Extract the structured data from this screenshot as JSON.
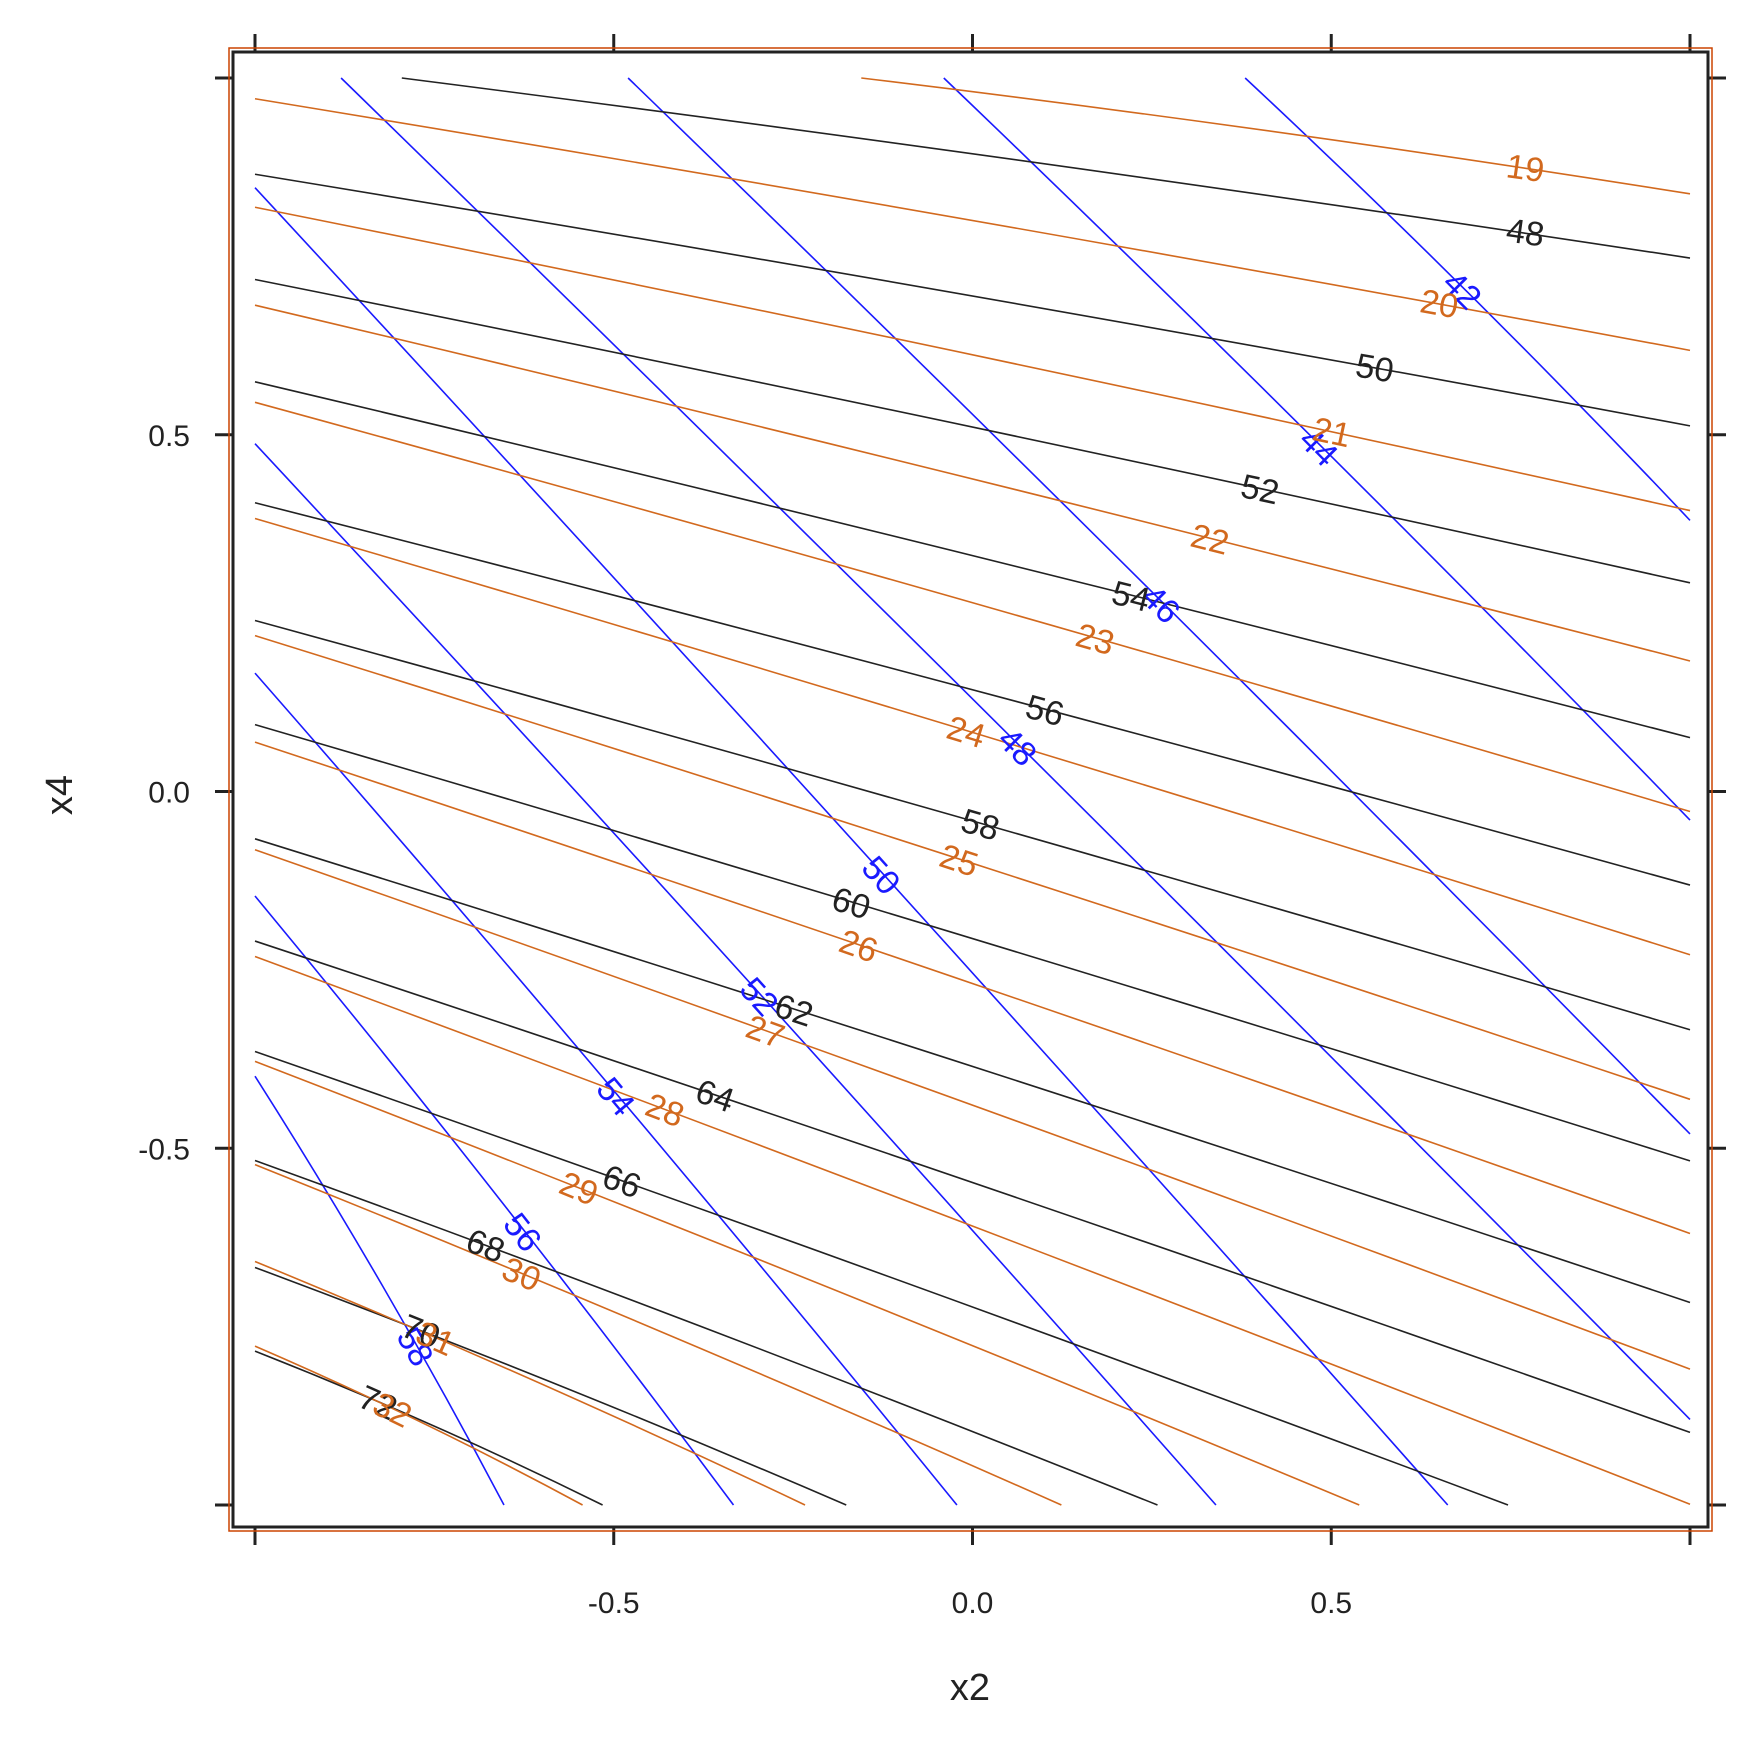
{
  "chart_data": {
    "type": "contour",
    "xlabel": "x2",
    "ylabel": "x4",
    "xlim": [
      -1,
      1
    ],
    "ylim": [
      -1,
      1
    ],
    "x_ticks": [
      -0.5,
      0.0,
      0.5
    ],
    "y_ticks": [
      -0.5,
      0.0,
      0.5
    ],
    "x_tick_labels": [
      "-0.5",
      "0.0",
      "0.5"
    ],
    "y_tick_labels": [
      "-0.5",
      "0.0",
      "0.5"
    ],
    "grid": false,
    "legend": "none",
    "series": [
      {
        "color": "#1a1aff",
        "levels": [
          {
            "level": "42",
            "label_at": [
              0.68,
              0.7
            ],
            "angle": 45
          },
          {
            "level": "44",
            "label_at": [
              0.48,
              0.48
            ],
            "angle": 45
          },
          {
            "level": "46",
            "label_at": [
              0.26,
              0.26
            ],
            "angle": 45
          },
          {
            "level": "48",
            "label_at": [
              0.06,
              0.06
            ],
            "angle": 45
          },
          {
            "level": "50",
            "label_at": [
              -0.13,
              -0.12
            ],
            "angle": 48
          },
          {
            "level": "52",
            "label_at": [
              -0.3,
              -0.29
            ],
            "angle": 48
          },
          {
            "level": "54",
            "label_at": [
              -0.5,
              -0.43
            ],
            "angle": 50
          },
          {
            "level": "56",
            "label_at": [
              -0.63,
              -0.62
            ],
            "angle": 52
          },
          {
            "level": "58",
            "label_at": [
              -0.78,
              -0.78
            ],
            "angle": 60
          }
        ]
      },
      {
        "color": "#222222",
        "levels": [
          {
            "level": "48",
            "label_at": [
              0.77,
              0.78
            ],
            "angle": 8
          },
          {
            "level": "50",
            "label_at": [
              0.56,
              0.59
            ],
            "angle": 10
          },
          {
            "level": "52",
            "label_at": [
              0.4,
              0.42
            ],
            "angle": 12
          },
          {
            "level": "54",
            "label_at": [
              0.22,
              0.27
            ],
            "angle": 14
          },
          {
            "level": "56",
            "label_at": [
              0.1,
              0.11
            ],
            "angle": 15
          },
          {
            "level": "58",
            "label_at": [
              0.01,
              -0.05
            ],
            "angle": 16
          },
          {
            "level": "60",
            "label_at": [
              -0.17,
              -0.16
            ],
            "angle": 17
          },
          {
            "level": "62",
            "label_at": [
              -0.25,
              -0.31
            ],
            "angle": 18
          },
          {
            "level": "64",
            "label_at": [
              -0.36,
              -0.43
            ],
            "angle": 19
          },
          {
            "level": "66",
            "label_at": [
              -0.49,
              -0.55
            ],
            "angle": 20
          },
          {
            "level": "68",
            "label_at": [
              -0.68,
              -0.64
            ],
            "angle": 21
          },
          {
            "level": "70",
            "label_at": [
              -0.77,
              -0.76
            ],
            "angle": 22
          },
          {
            "level": "72",
            "label_at": [
              -0.83,
              -0.86
            ],
            "angle": 24
          }
        ]
      },
      {
        "color": "#d2691e",
        "levels": [
          {
            "level": "19",
            "label_at": [
              0.77,
              0.87
            ],
            "angle": 8
          },
          {
            "level": "20",
            "label_at": [
              0.65,
              0.68
            ],
            "angle": 10
          },
          {
            "level": "21",
            "label_at": [
              0.5,
              0.5
            ],
            "angle": 12
          },
          {
            "level": "22",
            "label_at": [
              0.33,
              0.35
            ],
            "angle": 14
          },
          {
            "level": "23",
            "label_at": [
              0.17,
              0.21
            ],
            "angle": 16
          },
          {
            "level": "24",
            "label_at": [
              -0.01,
              0.08
            ],
            "angle": 17
          },
          {
            "level": "25",
            "label_at": [
              -0.02,
              -0.1
            ],
            "angle": 18
          },
          {
            "level": "26",
            "label_at": [
              -0.16,
              -0.22
            ],
            "angle": 19
          },
          {
            "level": "27",
            "label_at": [
              -0.29,
              -0.34
            ],
            "angle": 20
          },
          {
            "level": "28",
            "label_at": [
              -0.43,
              -0.45
            ],
            "angle": 21
          },
          {
            "level": "29",
            "label_at": [
              -0.55,
              -0.56
            ],
            "angle": 22
          },
          {
            "level": "30",
            "label_at": [
              -0.63,
              -0.68
            ],
            "angle": 23
          },
          {
            "level": "31",
            "label_at": [
              -0.75,
              -0.77
            ],
            "angle": 24
          },
          {
            "level": "32",
            "label_at": [
              -0.81,
              -0.87
            ],
            "angle": 26
          }
        ]
      }
    ]
  }
}
